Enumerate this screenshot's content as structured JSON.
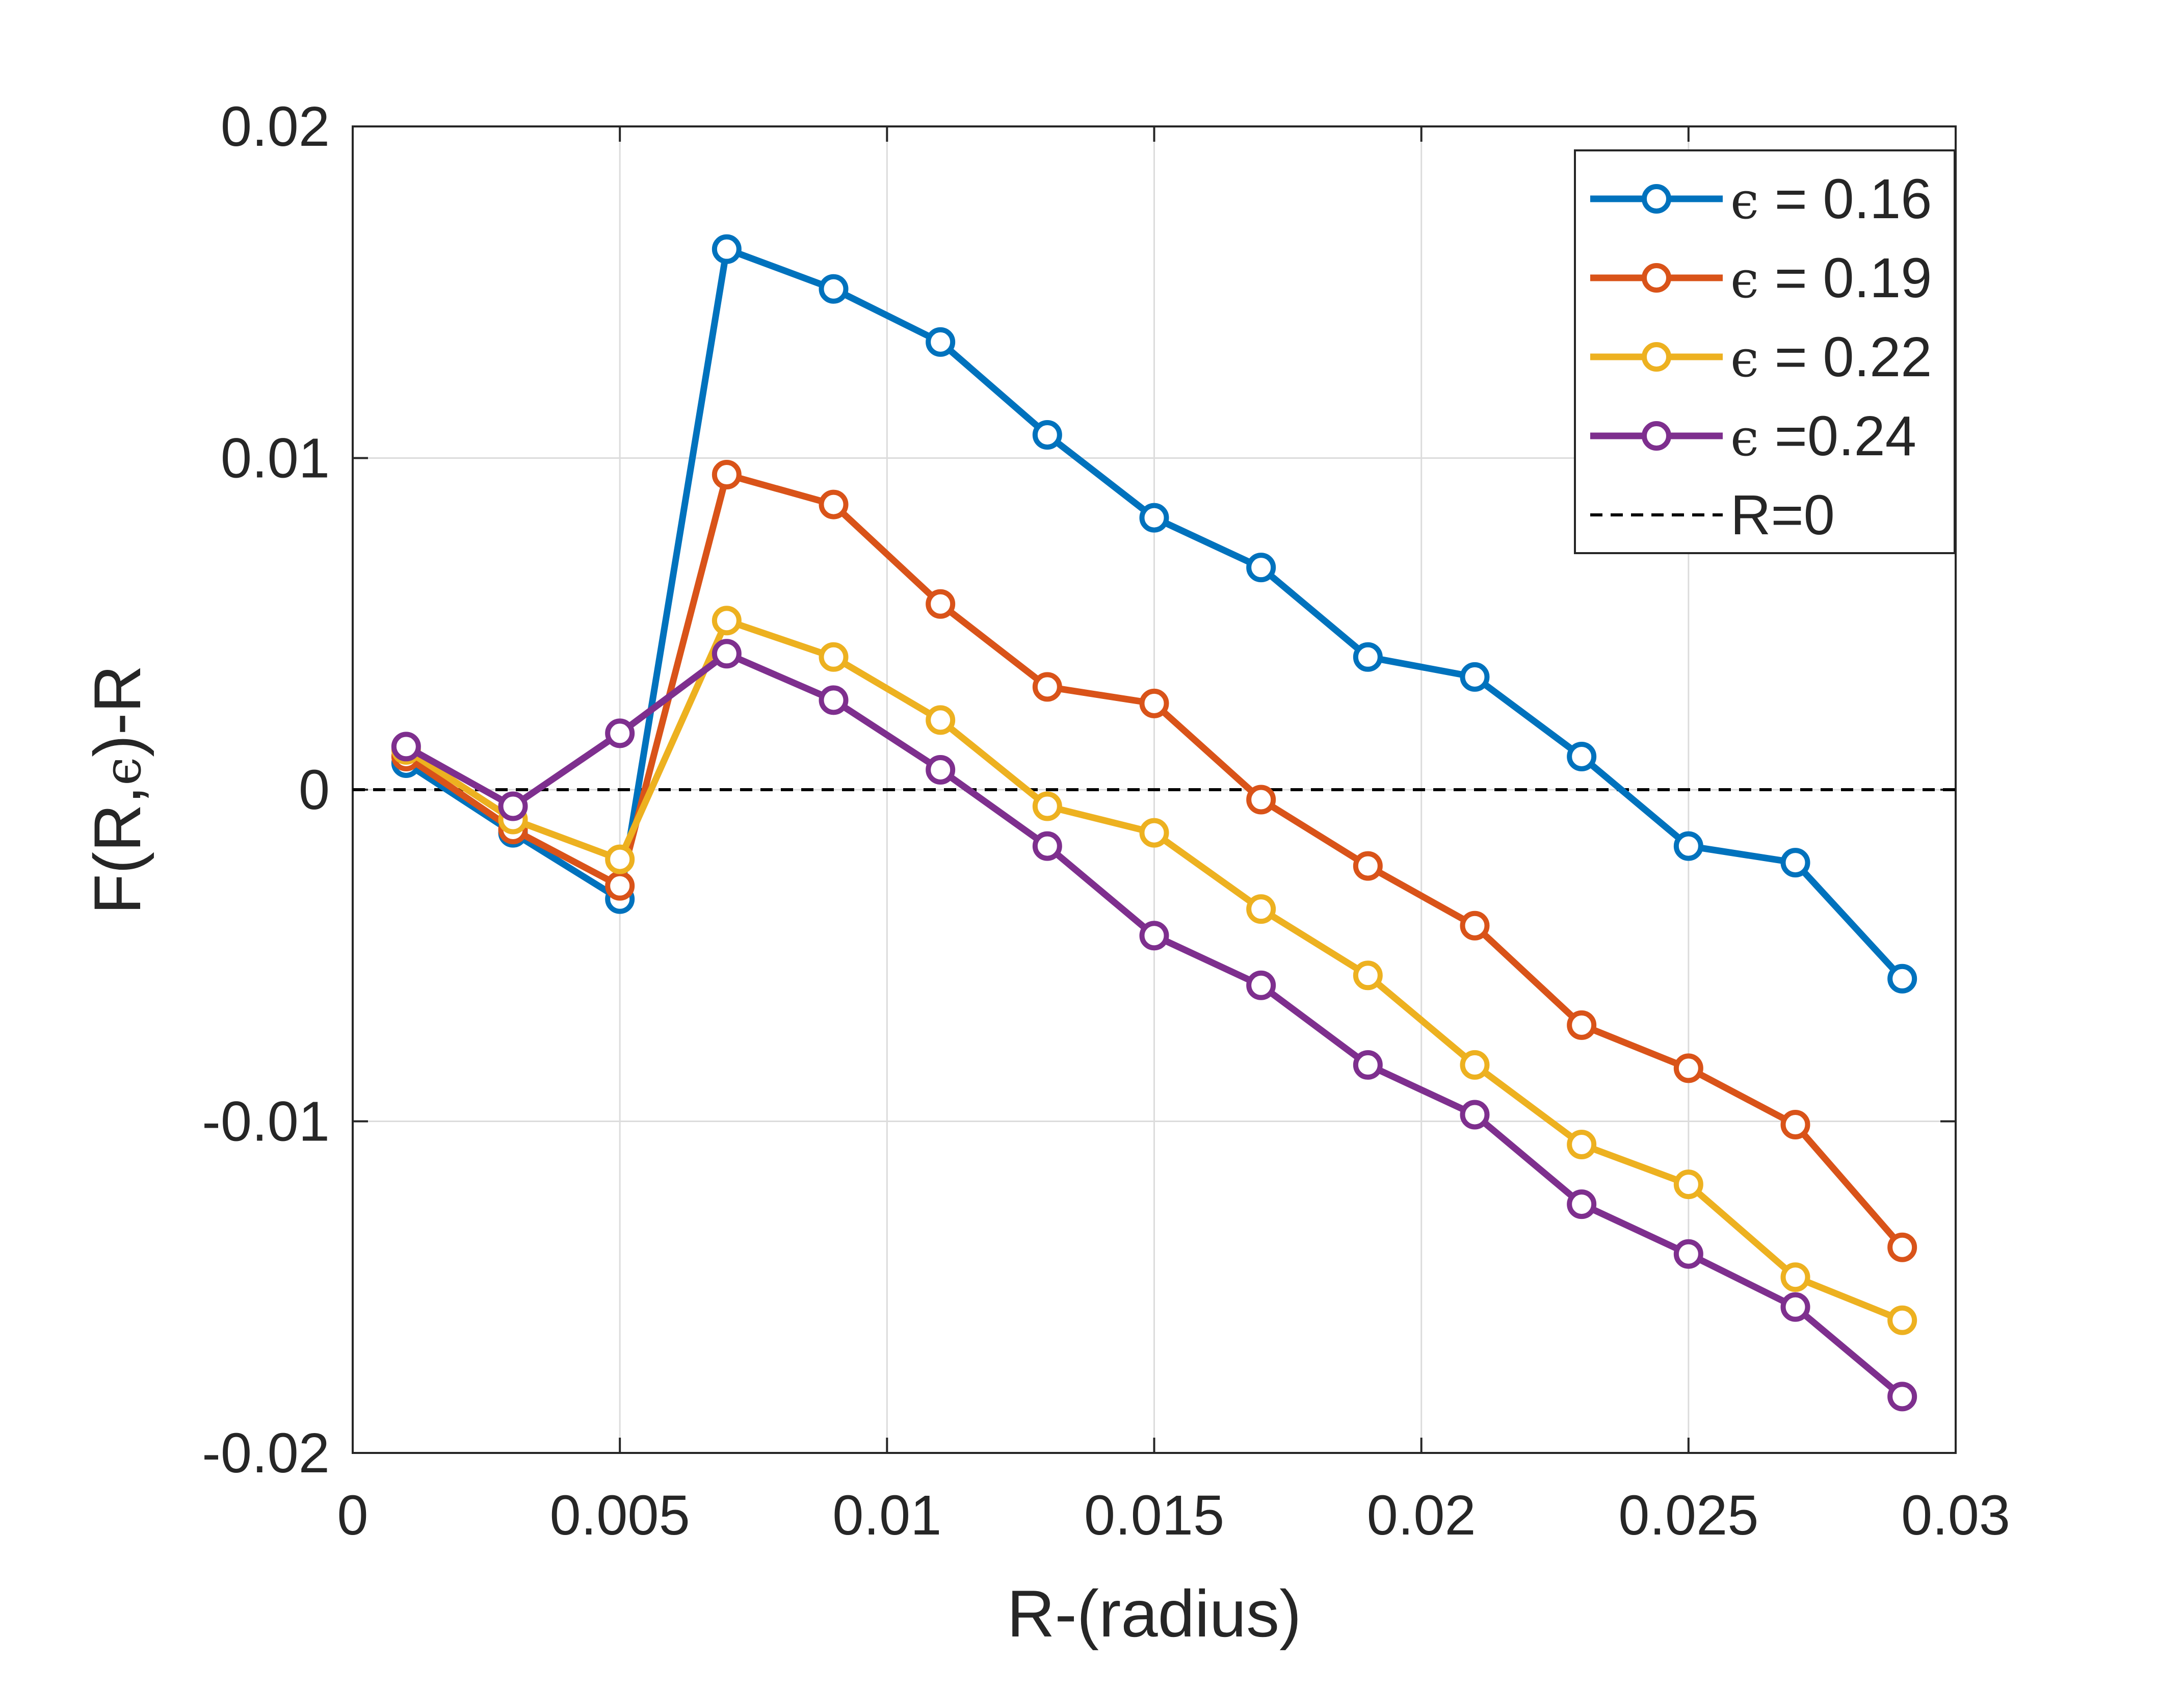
{
  "chart_data": {
    "type": "line",
    "title": "",
    "xlabel": "R-(radius)",
    "ylabel_parts": [
      "F(R,",
      "ϵ",
      ")-R"
    ],
    "xlim": [
      0,
      0.03
    ],
    "ylim": [
      -0.02,
      0.02
    ],
    "grid": true,
    "legend_position": "top-right",
    "x_ticks": [
      0,
      0.005,
      0.01,
      0.015,
      0.02,
      0.025,
      0.03
    ],
    "x_tick_labels": [
      "0",
      "0.005",
      "0.01",
      "0.015",
      "0.02",
      "0.025",
      "0.03"
    ],
    "y_ticks": [
      -0.02,
      -0.01,
      0,
      0.01,
      0.02
    ],
    "y_tick_labels": [
      "-0.02",
      "-0.01",
      "0",
      "0.01",
      "0.02"
    ],
    "x": [
      0.001,
      0.003,
      0.005,
      0.007,
      0.009,
      0.011,
      0.013,
      0.015,
      0.017,
      0.019,
      0.021,
      0.023,
      0.025,
      0.027,
      0.029
    ],
    "series": [
      {
        "name": "ϵ = 0.16",
        "legend_symbol": "ϵ",
        "legend_rest": " = 0.16",
        "color": "#0072BD",
        "values": [
          0.0008,
          -0.0013,
          -0.0033,
          0.0163,
          0.0151,
          0.0135,
          0.0107,
          0.0082,
          0.0067,
          0.004,
          0.0034,
          0.001,
          -0.0017,
          -0.0022,
          -0.0057
        ]
      },
      {
        "name": "ϵ = 0.19",
        "legend_symbol": "ϵ",
        "legend_rest": " = 0.19",
        "color": "#D95319",
        "values": [
          0.001,
          -0.0012,
          -0.0029,
          0.0095,
          0.0086,
          0.0056,
          0.0031,
          0.0026,
          -0.0003,
          -0.0023,
          -0.0041,
          -0.0071,
          -0.0084,
          -0.0101,
          -0.0138
        ]
      },
      {
        "name": "ϵ = 0.22",
        "legend_symbol": "ϵ",
        "legend_rest": " = 0.22",
        "color": "#EDB120",
        "values": [
          0.0012,
          -0.0009,
          -0.0021,
          0.0051,
          0.004,
          0.0021,
          -0.0005,
          -0.0013,
          -0.0036,
          -0.0056,
          -0.0083,
          -0.0107,
          -0.0119,
          -0.0147,
          -0.016
        ]
      },
      {
        "name": "ϵ =0.24",
        "legend_symbol": "ϵ",
        "legend_rest": " =0.24",
        "color": "#7E2F8E",
        "values": [
          0.0013,
          -0.0005,
          0.0017,
          0.0041,
          0.0027,
          0.0006,
          -0.0017,
          -0.0044,
          -0.0059,
          -0.0083,
          -0.0098,
          -0.0125,
          -0.014,
          -0.0156,
          -0.0183
        ]
      }
    ],
    "reference_line": {
      "name": "R=0",
      "y": 0,
      "color": "#000000",
      "style": "dashed"
    }
  }
}
